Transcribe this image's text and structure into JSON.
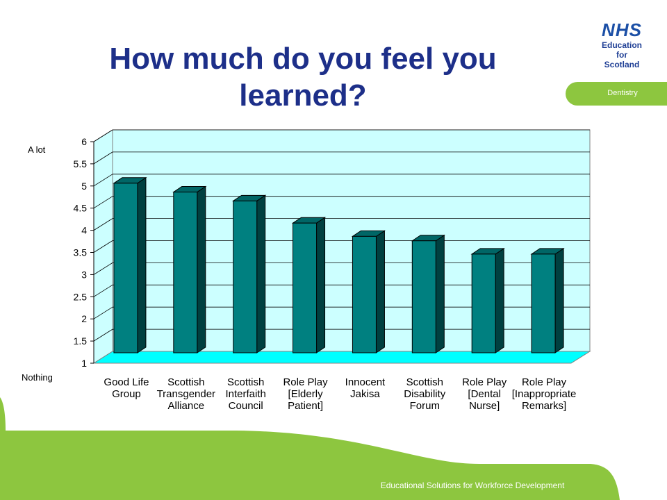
{
  "slide": {
    "title": "How much do you feel you learned?",
    "logo": {
      "line1": "NHS",
      "line2": "Education",
      "line3": "for",
      "line4": "Scotland"
    },
    "department": "Dentistry",
    "footer": "Educational Solutions for Workforce Development",
    "scale_top_label": "A lot",
    "scale_bottom_label": "Nothing"
  },
  "colors": {
    "title": "#1d2f89",
    "accent_green": "#8dc63f",
    "plot_wall": "#ccffff",
    "plot_floor": "#00ffff",
    "bar_front": "#008080",
    "bar_side": "#004040",
    "bar_top": "#006666"
  },
  "chart_data": {
    "type": "bar",
    "categories": [
      [
        "Good Life",
        "Group"
      ],
      [
        "Scottish",
        "Transgender",
        "Alliance"
      ],
      [
        "Scottish",
        "Interfaith",
        "Council"
      ],
      [
        "Role Play",
        "[Elderly",
        "Patient]"
      ],
      [
        "Innocent",
        "Jakisa"
      ],
      [
        "Scottish",
        "Disability",
        "Forum"
      ],
      [
        "Role Play",
        "[Dental",
        "Nurse]"
      ],
      [
        "Role Play",
        "[Inappropriate",
        "Remarks]"
      ]
    ],
    "values": [
      5.0,
      4.8,
      4.6,
      4.1,
      3.8,
      3.7,
      3.4,
      3.4
    ],
    "ylim": [
      1,
      6
    ],
    "yticks": [
      "1",
      "1.5",
      "2",
      "2.5",
      "3",
      "3.5",
      "4",
      "4.5",
      "5",
      "5.5",
      "6"
    ],
    "grid": true,
    "style": "3d"
  }
}
